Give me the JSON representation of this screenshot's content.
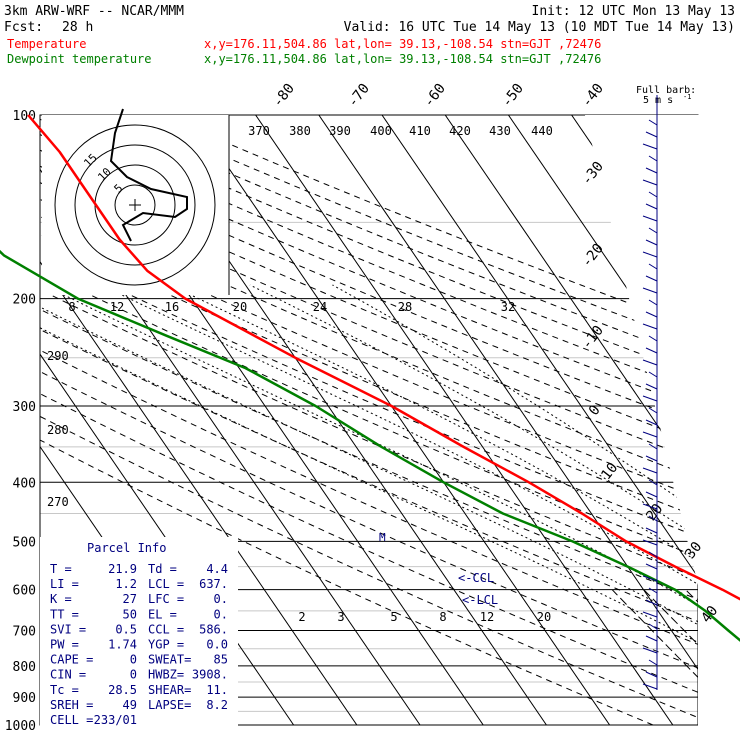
{
  "header": {
    "model": "3km ARW-WRF -- NCAR/MMM",
    "init": "Init: 12 UTC Mon 13 May 13",
    "fcst_label": "Fcst:",
    "fcst_value": "28 h",
    "valid": "Valid: 16 UTC Tue 14 May 13 (10 MDT Tue 14 May 13)",
    "temp_label": "Temperature",
    "dew_label": "Dewpoint temperature",
    "location": "x,y=176.11,504.86   lat,lon= 39.13,-108.54   stn=GJT ,72476",
    "barb_note_1": "Full barb:",
    "barb_note_2": "5 m s",
    "barb_note_3": "-1"
  },
  "colors": {
    "temperature": "#ff0000",
    "dewpoint": "#008000",
    "text": "#000000",
    "panel": "#000080",
    "barbs": "#000080",
    "hodograph": "#000000"
  },
  "chart_data": {
    "type": "line",
    "y_axis": "pressure (hPa), log scale",
    "ylim": [
      1000,
      100
    ],
    "pressure_ticks": [
      "100",
      "200",
      "300",
      "400",
      "500",
      "600",
      "700",
      "800",
      "900",
      "1000"
    ],
    "isotherm_labels": [
      "-80",
      "-70",
      "-60",
      "-50",
      "-40",
      "-30",
      "-20",
      "-10",
      "0",
      "10",
      "20",
      "30",
      "40"
    ],
    "theta_labels_top": [
      "370",
      "380",
      "390",
      "400",
      "410",
      "420",
      "430",
      "440"
    ],
    "theta_labels_left": [
      "290",
      "280",
      "270"
    ],
    "hodo_speed_labels": [
      "8",
      "12",
      "16",
      "20",
      "24",
      "28",
      "32"
    ],
    "hodo_unit": "kts",
    "mixing_ratio_labels": [
      "2",
      "3",
      "5",
      "8",
      "12",
      "20"
    ],
    "marker_labels": {
      "ccl": "<-CCL",
      "lcl": "<-LCL",
      "m": "M"
    },
    "series": [
      {
        "name": "Temperature",
        "color": "#ff0000",
        "points": [
          {
            "p": 850,
            "t": 21.9
          },
          {
            "p": 830,
            "t": 19.5
          },
          {
            "p": 800,
            "t": 17.5
          },
          {
            "p": 750,
            "t": 13.5
          },
          {
            "p": 700,
            "t": 9.5
          },
          {
            "p": 650,
            "t": 6.5
          },
          {
            "p": 600,
            "t": 2.5
          },
          {
            "p": 550,
            "t": -2.5
          },
          {
            "p": 500,
            "t": -7.5
          },
          {
            "p": 450,
            "t": -11.5
          },
          {
            "p": 400,
            "t": -16.5
          },
          {
            "p": 350,
            "t": -23
          },
          {
            "p": 300,
            "t": -30
          },
          {
            "p": 250,
            "t": -40
          },
          {
            "p": 200,
            "t": -51
          },
          {
            "p": 180,
            "t": -54
          },
          {
            "p": 160,
            "t": -55
          },
          {
            "p": 130,
            "t": -55
          },
          {
            "p": 115,
            "t": -55
          },
          {
            "p": 100,
            "t": -56
          }
        ]
      },
      {
        "name": "Dewpoint temperature",
        "color": "#008000",
        "points": [
          {
            "p": 850,
            "t": 4.4
          },
          {
            "p": 820,
            "t": 2.5
          },
          {
            "p": 800,
            "t": 1.5
          },
          {
            "p": 750,
            "t": 0.5
          },
          {
            "p": 700,
            "t": -1
          },
          {
            "p": 650,
            "t": -2.5
          },
          {
            "p": 600,
            "t": -5
          },
          {
            "p": 550,
            "t": -10
          },
          {
            "p": 500,
            "t": -16
          },
          {
            "p": 450,
            "t": -24
          },
          {
            "p": 400,
            "t": -30
          },
          {
            "p": 350,
            "t": -36
          },
          {
            "p": 300,
            "t": -42
          },
          {
            "p": 260,
            "t": -49
          },
          {
            "p": 230,
            "t": -58
          },
          {
            "p": 200,
            "t": -68
          },
          {
            "p": 170,
            "t": -75
          },
          {
            "p": 140,
            "t": -78
          },
          {
            "p": 120,
            "t": -80
          },
          {
            "p": 100,
            "t": -82
          }
        ]
      }
    ],
    "hodograph": {
      "rings_speed": [
        5,
        10,
        15,
        20
      ],
      "ring_labels": [
        "5",
        "10",
        "15"
      ],
      "points_uv": [
        [
          -1,
          -9
        ],
        [
          -3,
          -5
        ],
        [
          2,
          -2
        ],
        [
          10,
          -3
        ],
        [
          13,
          -1
        ],
        [
          13,
          2
        ],
        [
          4,
          4
        ],
        [
          -2,
          7
        ],
        [
          -6,
          11
        ],
        [
          -5,
          18
        ],
        [
          -3,
          24
        ]
      ]
    }
  },
  "parcel_info": {
    "title": "Parcel Info",
    "rows": [
      [
        "T =",
        "21.9",
        "Td =",
        "4.4"
      ],
      [
        "LI =",
        "1.2",
        "LCL =",
        "637."
      ],
      [
        "K =",
        "27",
        "LFC =",
        "0."
      ],
      [
        "TT =",
        "50",
        "EL =",
        "0."
      ],
      [
        "SVI =",
        "0.5",
        "CCL =",
        "586."
      ],
      [
        "PW =",
        "1.74",
        "YGP =",
        "0.0"
      ],
      [
        "CAPE =",
        "0",
        "SWEAT=",
        "85"
      ],
      [
        "CIN =",
        "0",
        "HWBZ=",
        "3908."
      ],
      [
        "Tc =",
        "28.5",
        "SHEAR=",
        "11."
      ],
      [
        "SREH =",
        "49",
        "LAPSE=",
        "8.2"
      ],
      [
        "CELL =",
        "233/01",
        "",
        ""
      ]
    ]
  }
}
